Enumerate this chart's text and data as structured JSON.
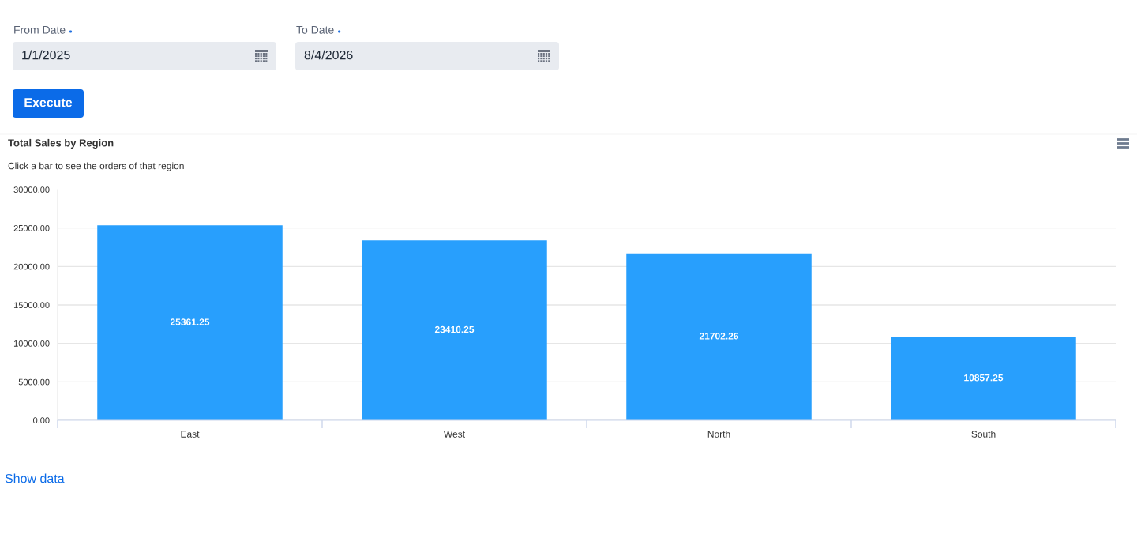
{
  "chart_data": {
    "type": "bar",
    "title": "Total Sales by Region",
    "subtitle": "Click a bar to see the orders of that region",
    "categories": [
      "East",
      "West",
      "North",
      "South"
    ],
    "values": [
      25361.25,
      23410.25,
      21702.26,
      10857.25
    ],
    "color": "#289ffd",
    "ylim": [
      0,
      30000
    ],
    "yticks": [
      {
        "value": 0,
        "label": "0.00"
      },
      {
        "value": 5000,
        "label": "5000.00"
      },
      {
        "value": 10000,
        "label": "10000.00"
      },
      {
        "value": 15000,
        "label": "15000.00"
      },
      {
        "value": 20000,
        "label": "20000.00"
      },
      {
        "value": 25000,
        "label": "25000.00"
      },
      {
        "value": 30000,
        "label": "30000.00"
      }
    ],
    "grid": "y",
    "data_labels": true,
    "annotations": [
      "From Date",
      "1/1/2025",
      "To Date",
      "8/4/2026",
      "Execute",
      "Show data"
    ]
  }
}
